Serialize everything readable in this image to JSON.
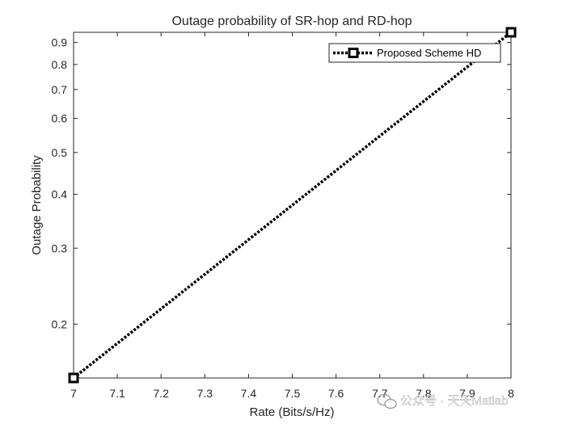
{
  "chart_data": {
    "type": "line",
    "title": "Outage probability of SR-hop and RD-hop",
    "xlabel": "Rate (Bits/s/Hz)",
    "ylabel": "Outage Probability",
    "xlim": [
      7,
      8
    ],
    "ylim": [
      0.15,
      0.95
    ],
    "y_scale": "log",
    "grid": false,
    "legend_position": "top-right",
    "x_ticks": [
      "7",
      "7.1",
      "7.2",
      "7.3",
      "7.4",
      "7.5",
      "7.6",
      "7.7",
      "7.8",
      "7.9",
      "8"
    ],
    "x_tick_values": [
      7,
      7.1,
      7.2,
      7.3,
      7.4,
      7.5,
      7.6,
      7.7,
      7.8,
      7.9,
      8
    ],
    "y_ticks": [
      "0.2",
      "0.3",
      "0.4",
      "0.5",
      "0.6",
      "0.7",
      "0.8",
      "0.9"
    ],
    "y_tick_values": [
      0.2,
      0.3,
      0.4,
      0.5,
      0.6,
      0.7,
      0.8,
      0.9
    ],
    "series": [
      {
        "name": "Proposed Scheme HD",
        "color": "#000000",
        "line_style": "dotted",
        "marker": "square",
        "x": [
          7,
          8
        ],
        "y": [
          0.15,
          0.95
        ]
      }
    ]
  },
  "watermark": {
    "text": "公众号 · 天天Matlab",
    "icon": "wechat-icon"
  }
}
